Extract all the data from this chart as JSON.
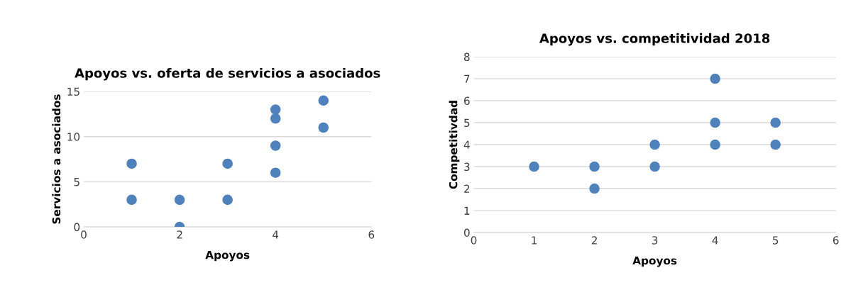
{
  "chart_data": [
    {
      "type": "scatter",
      "title": "Apoyos vs. oferta de servicios a asociados",
      "xlabel": "Apoyos",
      "ylabel": "Servicios a asociados",
      "x": [
        1,
        1,
        2,
        2,
        3,
        3,
        4,
        4,
        4,
        4,
        5,
        5
      ],
      "series": [
        {
          "color": "#4f81bd",
          "values": [
            7,
            3,
            3,
            0,
            7,
            3,
            13,
            12,
            9,
            6,
            14,
            11
          ]
        }
      ],
      "xlim": [
        0,
        6
      ],
      "xticks": [
        0,
        2,
        4,
        6
      ],
      "ylim": [
        0,
        15
      ],
      "yticks": [
        0,
        5,
        10,
        15
      ],
      "grid": "y",
      "marker": "circle"
    },
    {
      "type": "scatter",
      "title": "Apoyos vs. competitividad 2018",
      "xlabel": "Apoyos",
      "ylabel": "Competitivdad",
      "x": [
        1,
        2,
        2,
        3,
        3,
        4,
        4,
        4,
        5,
        5
      ],
      "series": [
        {
          "color": "#4f81bd",
          "values": [
            3,
            3,
            2,
            4,
            3,
            7,
            5,
            4,
            5,
            4
          ]
        }
      ],
      "xlim": [
        0,
        6
      ],
      "xticks": [
        0,
        1,
        2,
        3,
        4,
        5,
        6
      ],
      "ylim": [
        0,
        8
      ],
      "yticks": [
        0,
        1,
        2,
        3,
        4,
        5,
        6,
        7,
        8
      ],
      "grid": "y",
      "marker": "circle"
    }
  ]
}
